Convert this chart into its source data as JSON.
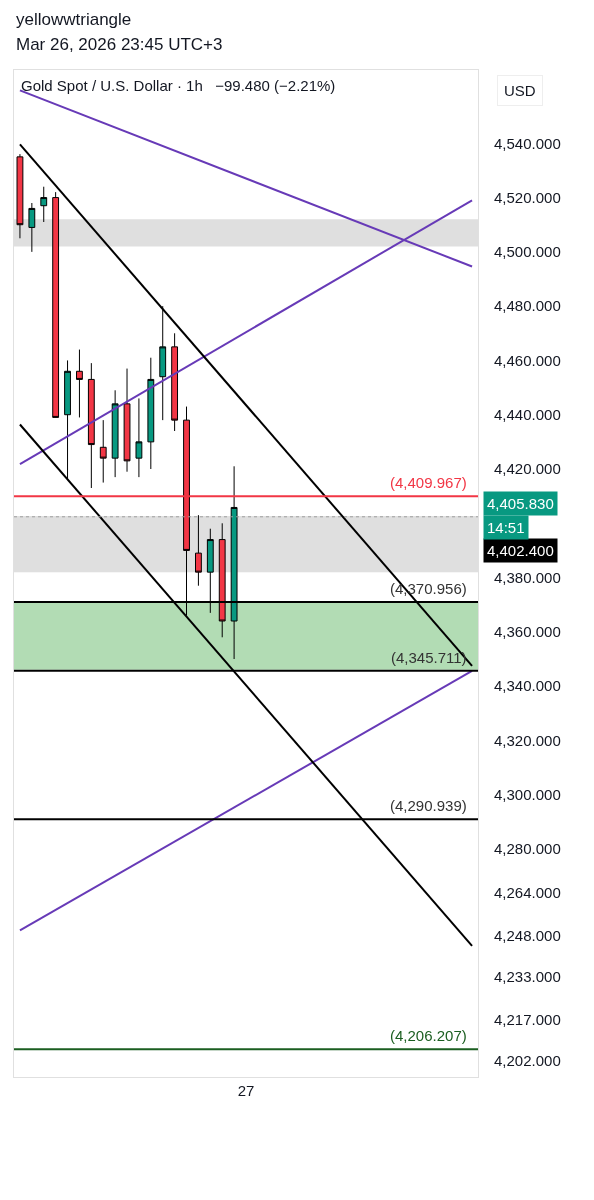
{
  "chart_data": {
    "type": "candlestick",
    "title": "Gold Spot / U.S. Dollar · 1h",
    "subtitle": "−99.480 (−2.21%)",
    "annotations": [
      "yellowwtriangle",
      "Mar 26, 2026 23:45 UTC+3",
      "USD",
      "4,405.830",
      "14:51"
    ],
    "categories": [
      null,
      null,
      null,
      null,
      null,
      null,
      null,
      null,
      null,
      null,
      null,
      null,
      null,
      null,
      null,
      null,
      null,
      null,
      null,
      "27",
      null,
      null,
      null,
      null,
      null,
      null,
      null,
      null,
      null,
      null,
      null,
      null,
      null,
      null,
      null,
      null,
      null,
      null,
      null
    ],
    "series": [
      {
        "ohlc": [
          [
            4535,
            4536,
            4505,
            4510
          ],
          [
            4509,
            4518,
            4500,
            4516
          ],
          [
            4517,
            4524,
            4511,
            4520
          ],
          [
            4520,
            4522,
            4439,
            4439
          ],
          [
            4440,
            4460,
            4416,
            4456
          ],
          [
            4456,
            4464,
            4439,
            4453
          ],
          [
            4453,
            4459,
            4413,
            4429
          ],
          [
            4428,
            4438,
            4415,
            4424
          ],
          [
            4424,
            4449,
            4417,
            4444
          ],
          [
            4444,
            4457,
            4419,
            4423
          ],
          [
            4424,
            4446,
            4417,
            4430
          ],
          [
            4430,
            4461,
            4420,
            4453
          ],
          [
            4454,
            4480,
            4438,
            4465
          ],
          [
            4465,
            4470,
            4434,
            4438
          ],
          [
            4438,
            4443,
            4366,
            4390
          ],
          [
            4389,
            4403,
            4377,
            4382
          ],
          [
            4382,
            4398,
            4367,
            4394
          ],
          [
            4394,
            4400,
            4358,
            4364
          ],
          [
            4364,
            4421,
            4350,
            4405.83
          ],
          null,
          null,
          null,
          null,
          null,
          null,
          null,
          null,
          null,
          null,
          null,
          null,
          null,
          null,
          null,
          null,
          null,
          null,
          null,
          null
        ],
        "colors": [
          "#f23645",
          "#089981",
          "#089981",
          "#f23645",
          "#089981",
          "#f23645",
          "#f23645",
          "#f23645",
          "#089981",
          "#f23645",
          "#089981",
          "#089981",
          "#089981",
          "#f23645",
          "#f23645",
          "#f23645",
          "#089981",
          "#f23645",
          "#089981",
          null,
          null,
          null,
          null,
          null,
          null,
          null,
          null,
          null,
          null,
          null,
          null,
          null,
          null,
          null,
          null,
          null,
          null,
          null,
          null
        ]
      },
      {
        "type": "line",
        "values": [
          4421.8,
          null,
          null,
          null,
          null,
          null,
          null,
          null,
          null,
          null,
          null,
          null,
          null,
          null,
          null,
          null,
          null,
          null,
          null,
          null,
          null,
          null,
          null,
          null,
          null,
          null,
          null,
          null,
          null,
          null,
          null,
          null,
          null,
          null,
          null,
          null,
          null,
          null,
          4519
        ],
        "color": "#673ab7"
      },
      {
        "type": "line",
        "values": [
          4250,
          null,
          null,
          null,
          null,
          null,
          null,
          null,
          null,
          null,
          null,
          null,
          null,
          null,
          null,
          null,
          null,
          null,
          null,
          null,
          null,
          null,
          null,
          null,
          null,
          null,
          null,
          null,
          null,
          null,
          null,
          null,
          null,
          null,
          null,
          null,
          null,
          null,
          4345.6
        ],
        "color": "#673ab7"
      },
      {
        "type": "line",
        "values": [
          4559.5,
          null,
          null,
          null,
          null,
          null,
          null,
          null,
          null,
          null,
          null,
          null,
          null,
          null,
          null,
          null,
          null,
          null,
          null,
          null,
          null,
          null,
          null,
          null,
          null,
          null,
          null,
          null,
          null,
          null,
          null,
          null,
          null,
          null,
          null,
          null,
          null,
          null,
          4494.6
        ],
        "color": "#673ab7"
      },
      {
        "type": "line",
        "values": [
          4539.6,
          null,
          null,
          null,
          null,
          null,
          null,
          null,
          null,
          null,
          null,
          null,
          null,
          null,
          null,
          null,
          null,
          null,
          null,
          null,
          null,
          null,
          null,
          null,
          null,
          null,
          null,
          null,
          null,
          null,
          null,
          null,
          null,
          null,
          null,
          null,
          null,
          null,
          4347.5
        ],
        "color": "#000000"
      },
      {
        "type": "line",
        "values": [
          4436.4,
          null,
          null,
          null,
          null,
          null,
          null,
          null,
          null,
          null,
          null,
          null,
          null,
          null,
          null,
          null,
          null,
          null,
          null,
          null,
          null,
          null,
          null,
          null,
          null,
          null,
          null,
          null,
          null,
          null,
          null,
          null,
          null,
          null,
          null,
          null,
          null,
          null,
          4244.3
        ],
        "color": "#000000"
      }
    ],
    "ref_lines": [
      {
        "axis": "y",
        "value": 4409.967,
        "label": "(4,409.967)",
        "color": "#f23645"
      },
      {
        "axis": "y",
        "value": 4402.4,
        "label": "4,402.400",
        "color": "#9e9e9e",
        "line_style": "dotted"
      },
      {
        "axis": "y",
        "value": 4370.956,
        "label": "(4,370.956)",
        "color": "#000000"
      },
      {
        "axis": "y",
        "value": 4345.711,
        "label": "(4,345.711)",
        "color": "#000000"
      },
      {
        "axis": "y",
        "value": 4290.939,
        "label": "(4,290.939)",
        "color": "#000000"
      },
      {
        "axis": "y",
        "value": 4206.207,
        "label": "(4,206.207)",
        "color": "#1b5e20"
      }
    ],
    "bands": [
      {
        "axis": "y",
        "from": 4502,
        "to": 4512,
        "color": "#d9d9d9"
      },
      {
        "axis": "y",
        "from": 4382,
        "to": 4402.7,
        "color": "#d9d9d9"
      },
      {
        "axis": "y",
        "from": 4346,
        "to": 4371,
        "color": "#a5d6a7"
      }
    ],
    "ylim": [
      4196,
      4567
    ],
    "yticks": [
      {
        "value": 4540,
        "label": "4,540.000"
      },
      {
        "value": 4520,
        "label": "4,520.000"
      },
      {
        "value": 4500,
        "label": "4,500.000"
      },
      {
        "value": 4480,
        "label": "4,480.000"
      },
      {
        "value": 4460,
        "label": "4,460.000"
      },
      {
        "value": 4440,
        "label": "4,440.000"
      },
      {
        "value": 4420,
        "label": "4,420.000"
      },
      {
        "value": 4380,
        "label": "4,380.000"
      },
      {
        "value": 4360,
        "label": "4,360.000"
      },
      {
        "value": 4340,
        "label": "4,340.000"
      },
      {
        "value": 4320,
        "label": "4,320.000"
      },
      {
        "value": 4300,
        "label": "4,300.000"
      },
      {
        "value": 4280,
        "label": "4,280.000"
      },
      {
        "value": 4264,
        "label": "4,264.000"
      },
      {
        "value": 4248,
        "label": "4,248.000"
      },
      {
        "value": 4233,
        "label": "4,233.000"
      },
      {
        "value": 4217,
        "label": "4,217.000"
      },
      {
        "value": 4202,
        "label": "4,202.000"
      }
    ],
    "grid": false
  }
}
